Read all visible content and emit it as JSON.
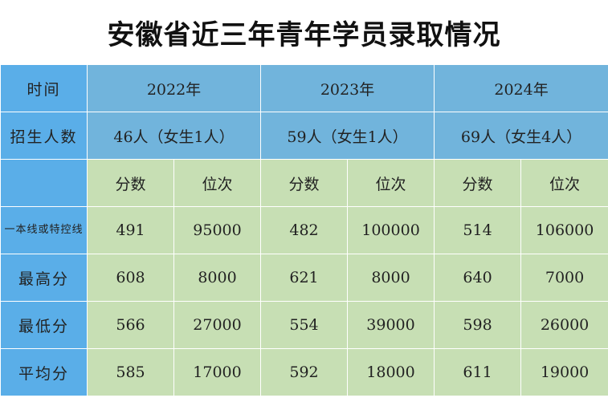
{
  "title": "安徽省近三年青年学员录取情况",
  "labels": {
    "time": "时间",
    "recruits": "招生人数",
    "line": "一本线或特控线",
    "highest": "最高分",
    "lowest": "最低分",
    "average": "平均分",
    "score": "分数",
    "rank": "位次"
  },
  "years": [
    {
      "year": "2022年",
      "recruits": "46人（女生1人）",
      "line": {
        "score": "491",
        "rank": "95000"
      },
      "highest": {
        "score": "608",
        "rank": "8000"
      },
      "lowest": {
        "score": "566",
        "rank": "27000"
      },
      "average": {
        "score": "585",
        "rank": "17000"
      }
    },
    {
      "year": "2023年",
      "recruits": "59人（女生1人）",
      "line": {
        "score": "482",
        "rank": "100000"
      },
      "highest": {
        "score": "621",
        "rank": "8000"
      },
      "lowest": {
        "score": "554",
        "rank": "39000"
      },
      "average": {
        "score": "592",
        "rank": "18000"
      }
    },
    {
      "year": "2024年",
      "recruits": "69人（女生4人）",
      "line": {
        "score": "514",
        "rank": "106000"
      },
      "highest": {
        "score": "640",
        "rank": "7000"
      },
      "lowest": {
        "score": "598",
        "rank": "26000"
      },
      "average": {
        "score": "611",
        "rank": "19000"
      }
    }
  ],
  "colors": {
    "side_header": "#5aaee8",
    "year_header": "#71b4dc",
    "data_cell": "#c7dfb4",
    "rank_text": "#e2161a"
  }
}
